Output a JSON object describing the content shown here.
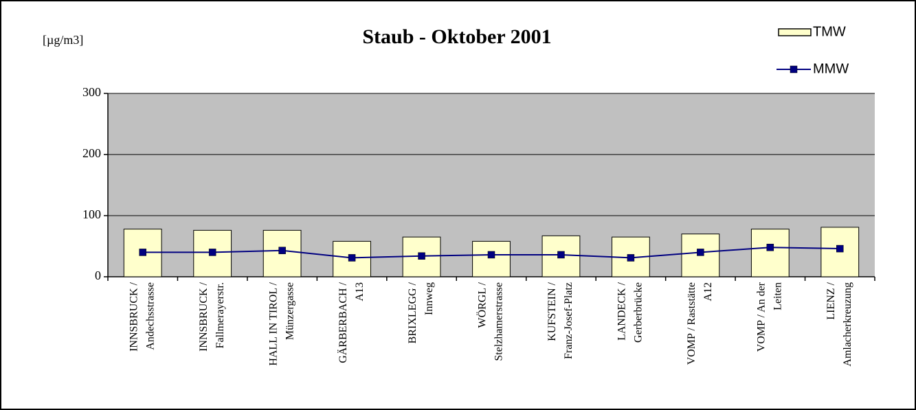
{
  "chart_data": {
    "type": "bar",
    "title": "Staub - Oktober 2001",
    "y_label": "[µg/m3]",
    "categories": [
      [
        "INNSBRUCK /",
        "Andechsstrasse"
      ],
      [
        "INNSBRUCK /",
        "Fallmerayerstr."
      ],
      [
        "HALL IN TIROL /",
        "Münzergasse"
      ],
      [
        "GÄRBERBACH /",
        "A13"
      ],
      [
        "BRIXLEGG /",
        "Innweg"
      ],
      [
        "WÖRGL /",
        "Stelzhamerstrasse"
      ],
      [
        "KUFSTEIN /",
        "Franz-Josef-Platz"
      ],
      [
        "LANDECK /",
        "Gerberbrücke"
      ],
      [
        "VOMP / Raststätte",
        "A12"
      ],
      [
        "VOMP / An der",
        "Leiten"
      ],
      [
        "LIENZ /",
        "Amlacherkreuzung"
      ]
    ],
    "series": [
      {
        "name": "TMW",
        "type": "bar",
        "color": "#ffffcc",
        "values": [
          78,
          76,
          76,
          58,
          65,
          58,
          67,
          65,
          70,
          78,
          81
        ]
      },
      {
        "name": "MMW",
        "type": "line",
        "color": "#000080",
        "values": [
          40,
          40,
          43,
          31,
          34,
          36,
          36,
          31,
          40,
          48,
          46
        ]
      }
    ],
    "ylim": [
      0,
      300
    ],
    "yticks": [
      0,
      100,
      200,
      300
    ],
    "grid": true,
    "plot_background": "#c0c0c0",
    "legend": "top-right"
  }
}
